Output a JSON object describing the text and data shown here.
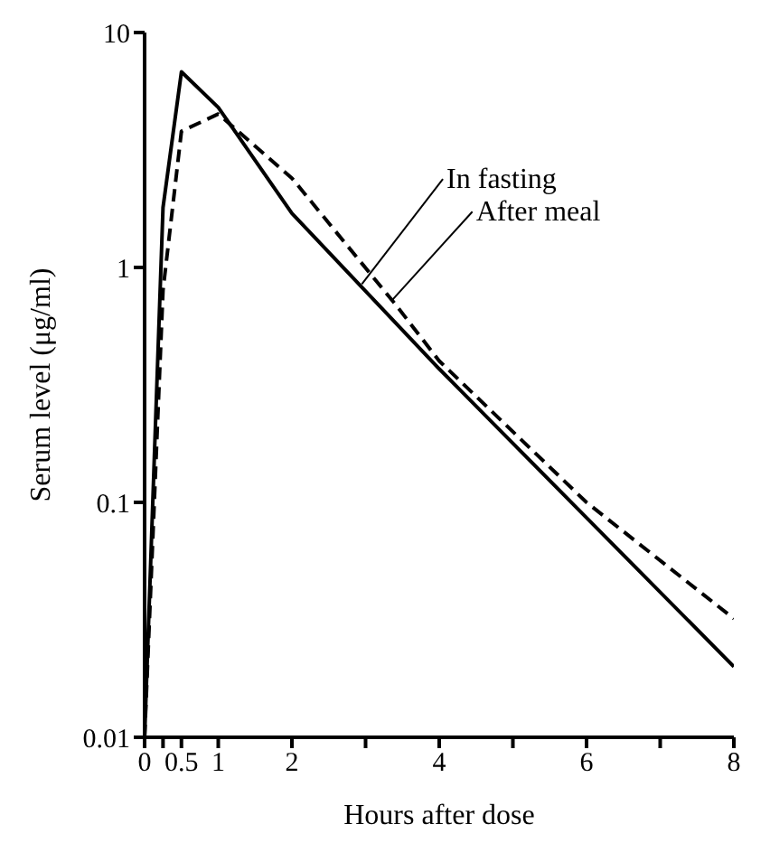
{
  "chart_data": {
    "type": "line",
    "xlabel": "Hours after dose",
    "ylabel": "Serum level (μg/ml)",
    "log": "y",
    "marker": "none",
    "xlim": [
      0,
      8
    ],
    "xticks": [
      0,
      {
        "value": 0.25,
        "label": null
      },
      0.5,
      1,
      2,
      {
        "value": 3,
        "label": null
      },
      4,
      {
        "value": 5,
        "label": null
      },
      6,
      {
        "value": 7,
        "label": null
      },
      8
    ],
    "ylim": [
      0.01,
      10
    ],
    "yticks": [
      0.01,
      0.1,
      1,
      10
    ],
    "series": [
      {
        "color": "#000000",
        "line_style": "solid",
        "x": [
          0,
          0.25,
          0.5,
          1,
          2,
          4,
          8
        ],
        "values": [
          0.01,
          1.8,
          6.8,
          4.8,
          1.7,
          0.37,
          0.02
        ]
      },
      {
        "color": "#000000",
        "line_style": "dashed",
        "x": [
          0,
          0.25,
          0.5,
          1,
          2,
          3.4,
          4,
          6,
          8
        ],
        "values": [
          0.01,
          0.8,
          3.8,
          4.5,
          2.4,
          0.7,
          0.4,
          0.1,
          0.032
        ]
      }
    ],
    "annotations": [
      {
        "text": "In fasting",
        "x": 2.95,
        "y": 0.85
      },
      {
        "text": "After meal",
        "x": 3.35,
        "y": 0.72
      }
    ]
  }
}
